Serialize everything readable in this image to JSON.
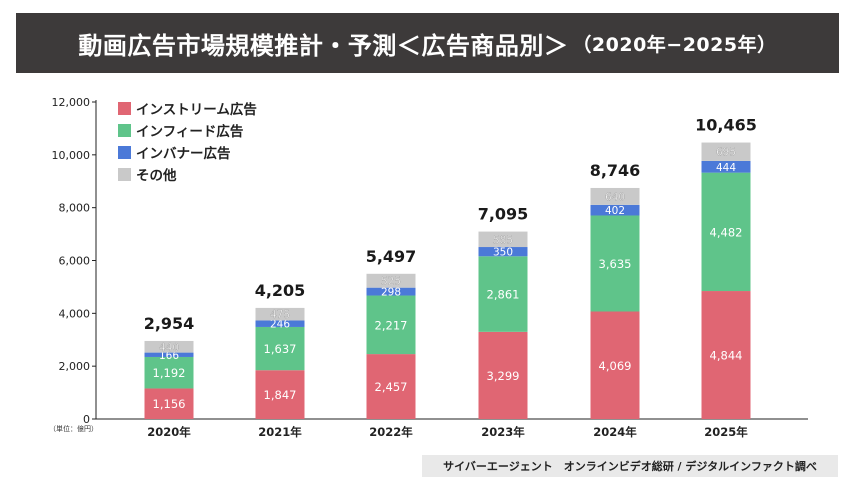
{
  "title": "動画広告市場規模推計・予測＜広告商品別＞",
  "subtitle": "（2020年−2025年）",
  "unit_note": "（単位：億円）",
  "source": "サイバーエージェント　オンラインビデオ総研 / デジタルインファクト調べ",
  "colors": {
    "instream": "#e06673",
    "infeed": "#5fc48a",
    "inbanner": "#4b79d8",
    "other": "#c9c9c9"
  },
  "chart_data": {
    "type": "bar",
    "stacked": true,
    "categories": [
      "2020年",
      "2021年",
      "2022年",
      "2023年",
      "2024年",
      "2025年"
    ],
    "series": [
      {
        "name": "インストリーム広告",
        "color_key": "instream",
        "values": [
          1156,
          1847,
          2457,
          3299,
          4069,
          4844
        ]
      },
      {
        "name": "インフィード広告",
        "color_key": "infeed",
        "values": [
          1192,
          1637,
          2217,
          2861,
          3635,
          4482
        ]
      },
      {
        "name": "インバナー広告",
        "color_key": "inbanner",
        "values": [
          166,
          246,
          298,
          350,
          402,
          444
        ]
      },
      {
        "name": "その他",
        "color_key": "other",
        "values": [
          440,
          475,
          525,
          585,
          640,
          695
        ]
      }
    ],
    "totals": [
      "2,954",
      "4,205",
      "5,497",
      "7,095",
      "8,746",
      "10,465"
    ],
    "segment_labels": [
      [
        "1,156",
        "1,192",
        "166",
        "440"
      ],
      [
        "1,847",
        "1,637",
        "246",
        "475"
      ],
      [
        "2,457",
        "2,217",
        "298",
        "525"
      ],
      [
        "3,299",
        "2,861",
        "350",
        "585"
      ],
      [
        "4,069",
        "3,635",
        "402",
        "640"
      ],
      [
        "4,844",
        "4,482",
        "444",
        "695"
      ]
    ],
    "ylim": [
      0,
      12000
    ],
    "yticks": [
      0,
      2000,
      4000,
      6000,
      8000,
      10000,
      12000
    ],
    "ytick_labels": [
      "0",
      "2,000",
      "4,000",
      "6,000",
      "8,000",
      "10,000",
      "12,000"
    ],
    "legend_position": "top-left"
  }
}
